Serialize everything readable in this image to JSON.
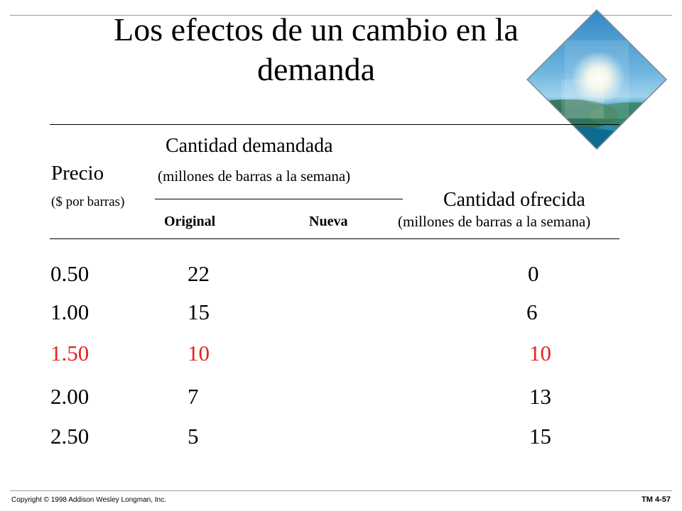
{
  "slide": {
    "title_line1": "Los efectos de un cambio en la",
    "title_line2": "demanda"
  },
  "table": {
    "header": {
      "demand_title": "Cantidad demandada",
      "price_title": "Precio",
      "demand_units": "(millones de barras a la semana)",
      "price_units": "($ por barras)",
      "supply_title": "Cantidad ofrecida",
      "col_original": "Original",
      "col_nueva": "Nueva",
      "supply_units": "(millones de barras a la semana)"
    },
    "rows": [
      {
        "price": "0.50",
        "original": "22",
        "nueva": "",
        "supply": "0"
      },
      {
        "price": "1.00",
        "original": "15",
        "nueva": "",
        "supply": "6"
      },
      {
        "price": "1.50",
        "original": "10",
        "nueva": "",
        "supply": "10"
      },
      {
        "price": "2.00",
        "original": "7",
        "nueva": "",
        "supply": "13"
      },
      {
        "price": "2.50",
        "original": "5",
        "nueva": "",
        "supply": "15"
      }
    ],
    "highlight_color": "#e5231e"
  },
  "footer": {
    "copyright": "Copyright © 1998 Addison Wesley Longman, Inc.",
    "slide_number": "TM 4-57"
  },
  "decoration": {
    "icon": "beach-diamond-icon"
  }
}
